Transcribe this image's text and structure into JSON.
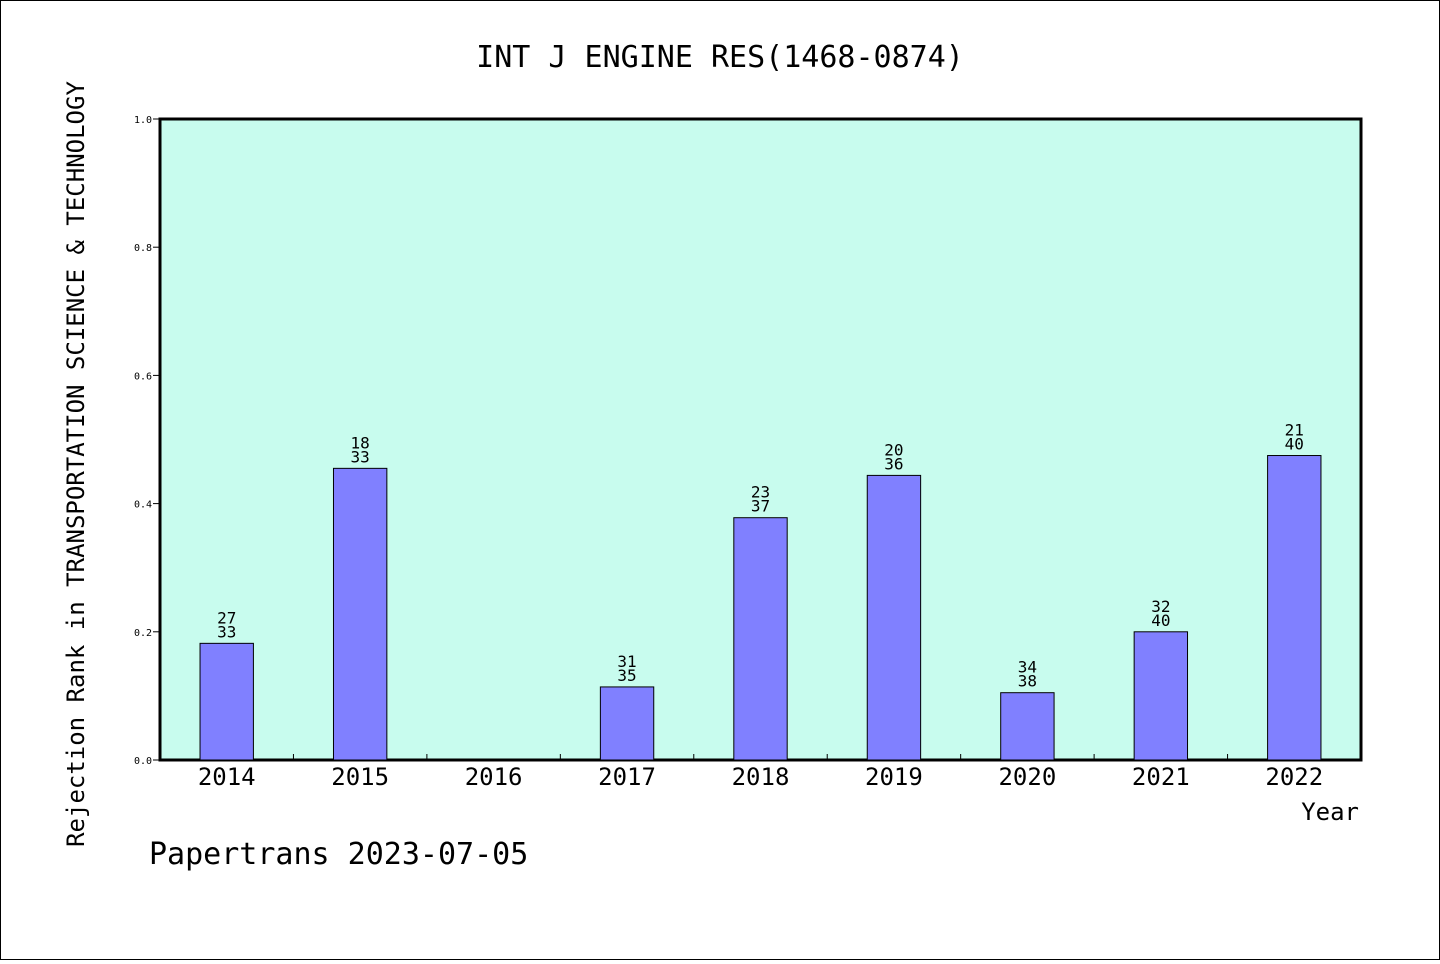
{
  "chart_data": {
    "type": "bar",
    "title": "INT J ENGINE RES(1468-0874)",
    "xlabel": "Year",
    "ylabel": "Rejection Rank in TRANSPORTATION SCIENCE & TECHNOLOGY",
    "categories": [
      "2014",
      "2015",
      "2016",
      "2017",
      "2018",
      "2019",
      "2020",
      "2021",
      "2022"
    ],
    "values": [
      0.182,
      0.455,
      null,
      0.114,
      0.378,
      0.444,
      0.105,
      0.2,
      0.475
    ],
    "labels_top": [
      "27",
      "18",
      "",
      "31",
      "23",
      "20",
      "34",
      "32",
      "21"
    ],
    "labels_bottom": [
      "33",
      "33",
      "",
      "35",
      "37",
      "36",
      "38",
      "40",
      "40"
    ],
    "ylim": [
      0,
      1.0
    ],
    "yticks": [
      "0.0",
      "0.2",
      "0.4",
      "0.6",
      "0.8",
      "1.0"
    ],
    "grid": false,
    "colors": {
      "plot_background": "#c8fcee",
      "bar_fill": "#8080ff",
      "bar_stroke": "#000000"
    }
  },
  "footer": "Papertrans 2023-07-05"
}
